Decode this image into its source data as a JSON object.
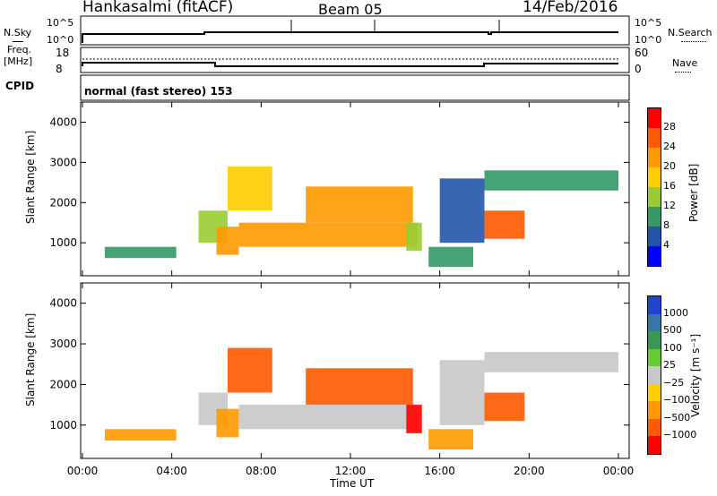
{
  "header": {
    "station": "Hankasalmi (fitACF)",
    "beam": "Beam 05",
    "date": "14/Feb/2016"
  },
  "top_panels": {
    "nsky_label": "N.Sky",
    "nsky_scale": [
      "10^5",
      "10^0"
    ],
    "nsearch_label": "N.Search",
    "nsearch_scale": [
      "10^5",
      "10^0"
    ],
    "freq_label_1": "Freq.",
    "freq_label_2": "[MHz]",
    "freq_scale": [
      "18",
      "8"
    ],
    "nave_label": "Nave",
    "nave_scale": [
      "60",
      "0"
    ],
    "cpid_label": "CPID",
    "cpid_text": "normal (fast stereo) 153"
  },
  "power_colorbar": {
    "label": "Power [dB]",
    "ticks": [
      "28",
      "24",
      "20",
      "16",
      "12",
      "8",
      "4"
    ],
    "colors": [
      "#ff0000",
      "#ff5a00",
      "#ff9900",
      "#ffcc00",
      "#99cc33",
      "#339966",
      "#2255aa",
      "#0000ff"
    ]
  },
  "velocity_colorbar": {
    "label": "Velocity [m s⁻¹]",
    "ticks": [
      "1000",
      "500",
      "100",
      "25",
      "−25",
      "−100",
      "−500",
      "−1000"
    ],
    "colors": [
      "#2244cc",
      "#3377aa",
      "#339955",
      "#66cc33",
      "#c8c8c8",
      "#ffcc00",
      "#ff9900",
      "#ff5a00",
      "#ff0000"
    ]
  },
  "x_axis": {
    "label": "Time UT",
    "ticks": [
      "00:00",
      "04:00",
      "08:00",
      "12:00",
      "16:00",
      "20:00",
      "00:00"
    ]
  },
  "y_axis": {
    "label": "Slant Range [km]",
    "ticks": [
      "4000",
      "3000",
      "2000",
      "1000"
    ]
  },
  "chart_data": [
    {
      "type": "heatmap",
      "title": "",
      "quantity": "Power [dB]",
      "xlabel": "",
      "ylabel": "Slant Range [km]",
      "xlim_hours": [
        0,
        24
      ],
      "ylim": [
        180,
        4500
      ],
      "color_range": [
        0,
        30
      ],
      "regions": [
        {
          "t": [
            1.0,
            4.2
          ],
          "r": [
            620,
            900
          ],
          "power": 8
        },
        {
          "t": [
            5.2,
            6.5
          ],
          "r": [
            1000,
            1800
          ],
          "power": 12
        },
        {
          "t": [
            6.0,
            7.0
          ],
          "r": [
            700,
            1400
          ],
          "power": 22
        },
        {
          "t": [
            6.5,
            8.5
          ],
          "r": [
            1800,
            2900
          ],
          "power": 16
        },
        {
          "t": [
            7.0,
            15.0
          ],
          "r": [
            900,
            1500
          ],
          "power": 20
        },
        {
          "t": [
            10.0,
            14.8
          ],
          "r": [
            1500,
            2400
          ],
          "power": 22
        },
        {
          "t": [
            14.5,
            15.2
          ],
          "r": [
            800,
            1500
          ],
          "power": 14
        },
        {
          "t": [
            15.5,
            17.5
          ],
          "r": [
            400,
            900
          ],
          "power": 10
        },
        {
          "t": [
            16.0,
            18.0
          ],
          "r": [
            1000,
            2600
          ],
          "power": 6
        },
        {
          "t": [
            18.0,
            19.8
          ],
          "r": [
            1100,
            1800
          ],
          "power": 24
        },
        {
          "t": [
            18.0,
            24.0
          ],
          "r": [
            2300,
            2800
          ],
          "power": 8
        }
      ]
    },
    {
      "type": "heatmap",
      "title": "",
      "quantity": "Velocity [m s-1]",
      "xlabel": "Time UT",
      "ylabel": "Slant Range [km]",
      "xlim_hours": [
        0,
        24
      ],
      "ylim": [
        180,
        4500
      ],
      "color_range": [
        -1000,
        1000
      ],
      "regions": [
        {
          "t": [
            1.0,
            4.2
          ],
          "r": [
            620,
            900
          ],
          "velocity": -100
        },
        {
          "t": [
            5.2,
            6.5
          ],
          "r": [
            1000,
            1800
          ],
          "velocity": 0
        },
        {
          "t": [
            6.0,
            7.0
          ],
          "r": [
            700,
            1400
          ],
          "velocity": -100
        },
        {
          "t": [
            6.5,
            8.5
          ],
          "r": [
            1800,
            2900
          ],
          "velocity": -500
        },
        {
          "t": [
            7.0,
            15.0
          ],
          "r": [
            900,
            1500
          ],
          "velocity": 0
        },
        {
          "t": [
            10.0,
            14.8
          ],
          "r": [
            1500,
            2400
          ],
          "velocity": -500
        },
        {
          "t": [
            14.5,
            15.2
          ],
          "r": [
            800,
            1500
          ],
          "velocity": -1000
        },
        {
          "t": [
            15.5,
            17.5
          ],
          "r": [
            400,
            900
          ],
          "velocity": -100
        },
        {
          "t": [
            16.0,
            18.0
          ],
          "r": [
            1000,
            2600
          ],
          "velocity": 0
        },
        {
          "t": [
            18.0,
            19.8
          ],
          "r": [
            1100,
            1800
          ],
          "velocity": -500
        },
        {
          "t": [
            18.0,
            24.0
          ],
          "r": [
            2300,
            2800
          ],
          "velocity": 0
        }
      ]
    }
  ]
}
